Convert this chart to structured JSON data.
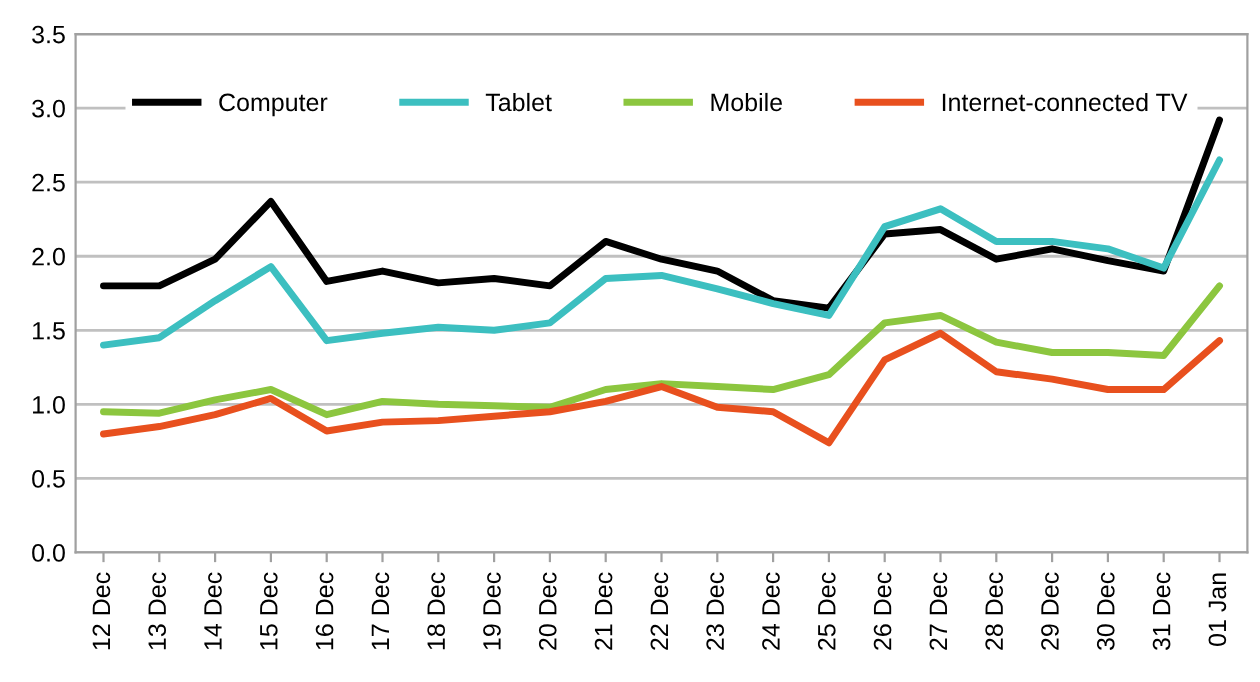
{
  "chart_data": {
    "type": "line",
    "categories": [
      "12 Dec",
      "13 Dec",
      "14 Dec",
      "15 Dec",
      "16 Dec",
      "17 Dec",
      "18 Dec",
      "19 Dec",
      "20 Dec",
      "21 Dec",
      "22 Dec",
      "23 Dec",
      "24 Dec",
      "25 Dec",
      "26 Dec",
      "27 Dec",
      "28 Dec",
      "29 Dec",
      "30 Dec",
      "31 Dec",
      "01 Jan"
    ],
    "series": [
      {
        "name": "Computer",
        "color": "#000000",
        "values": [
          1.8,
          1.8,
          1.98,
          2.37,
          1.83,
          1.9,
          1.82,
          1.85,
          1.8,
          2.1,
          1.98,
          1.9,
          1.7,
          1.65,
          2.15,
          2.18,
          1.98,
          2.05,
          1.97,
          1.9,
          2.92
        ]
      },
      {
        "name": "Tablet",
        "color": "#3cbfc0",
        "values": [
          1.4,
          1.45,
          1.7,
          1.93,
          1.43,
          1.48,
          1.52,
          1.5,
          1.55,
          1.85,
          1.87,
          1.78,
          1.68,
          1.6,
          2.2,
          2.32,
          2.1,
          2.1,
          2.05,
          1.92,
          2.65
        ]
      },
      {
        "name": "Mobile",
        "color": "#8cc63f",
        "values": [
          0.95,
          0.94,
          1.03,
          1.1,
          0.93,
          1.02,
          1.0,
          0.99,
          0.98,
          1.1,
          1.14,
          1.12,
          1.1,
          1.2,
          1.55,
          1.6,
          1.42,
          1.35,
          1.35,
          1.33,
          1.8
        ]
      },
      {
        "name": "Internet-connected TV",
        "color": "#e8501e",
        "values": [
          0.8,
          0.85,
          0.93,
          1.04,
          0.82,
          0.88,
          0.89,
          0.92,
          0.95,
          1.02,
          1.12,
          0.98,
          0.95,
          0.74,
          1.3,
          1.48,
          1.22,
          1.17,
          1.1,
          1.1,
          1.43
        ]
      }
    ],
    "ylim": [
      0,
      3.5
    ],
    "yticks": [
      {
        "value": 0,
        "label": "0.0"
      },
      {
        "value": 0.5,
        "label": "0.5"
      },
      {
        "value": 1,
        "label": "1.0"
      },
      {
        "value": 1.5,
        "label": "1.5"
      },
      {
        "value": 2,
        "label": "2.0"
      },
      {
        "value": 2.5,
        "label": "2.5"
      },
      {
        "value": 3,
        "label": "3.0"
      },
      {
        "value": 3.5,
        "label": "3.5"
      }
    ],
    "grid": "y",
    "legend": "top",
    "marker": "none",
    "line_style": "solid"
  }
}
